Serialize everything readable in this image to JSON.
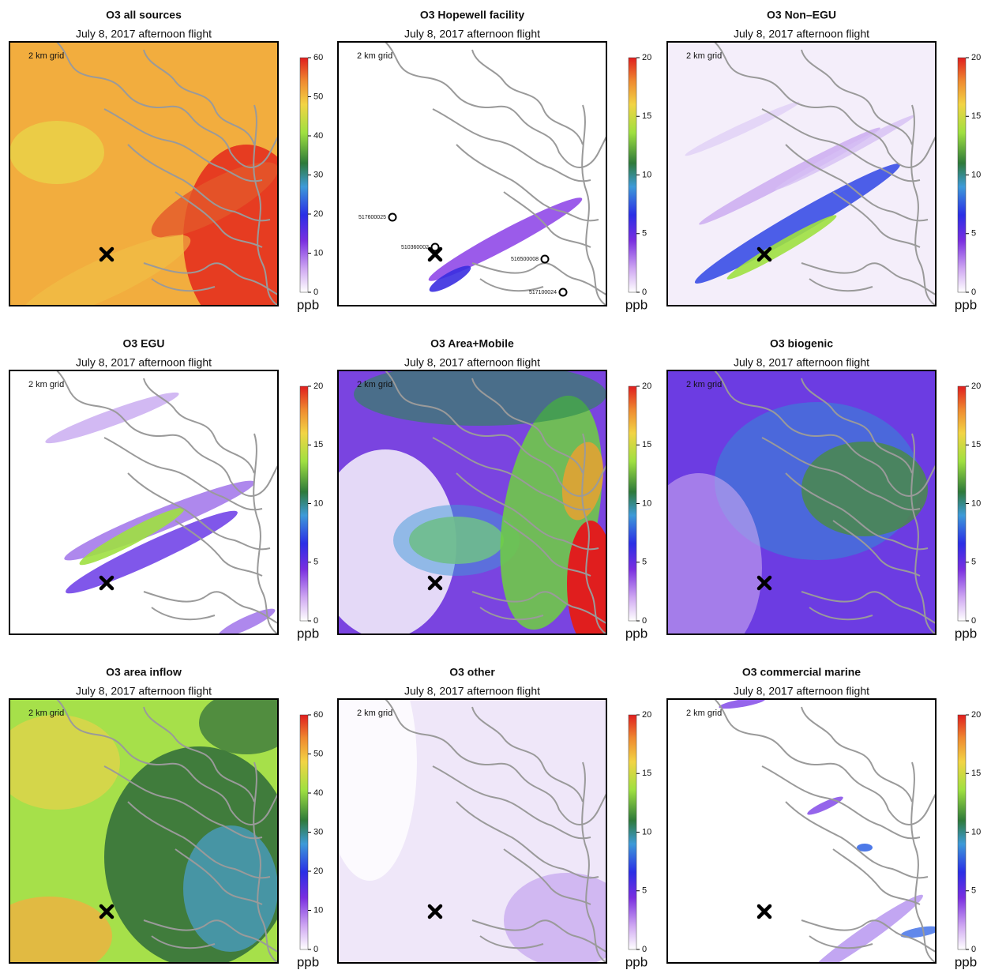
{
  "panels": [
    {
      "title": "O3 all sources",
      "subtitle": "July 8, 2017 afternoon flight",
      "grid_label": "2 km grid",
      "unit": "ppb",
      "colorbar": {
        "lim": [
          0,
          60
        ],
        "ticks": [
          0,
          10,
          20,
          30,
          40,
          50,
          60
        ]
      }
    },
    {
      "title": "O3 Hopewell facility",
      "subtitle": "July 8, 2017 afternoon flight",
      "grid_label": "2 km grid",
      "unit": "ppb",
      "colorbar": {
        "lim": [
          0,
          20
        ],
        "ticks": [
          0,
          5,
          10,
          15,
          20
        ]
      },
      "sites": [
        "517600025",
        "510360002",
        "516500008",
        "517100024"
      ]
    },
    {
      "title": "O3 Non–EGU",
      "subtitle": "July 8, 2017 afternoon flight",
      "grid_label": "2 km grid",
      "unit": "ppb",
      "colorbar": {
        "lim": [
          0,
          20
        ],
        "ticks": [
          0,
          5,
          10,
          15,
          20
        ]
      }
    },
    {
      "title": "O3 EGU",
      "subtitle": "July 8, 2017 afternoon flight",
      "grid_label": "2 km grid",
      "unit": "ppb",
      "colorbar": {
        "lim": [
          0,
          20
        ],
        "ticks": [
          0,
          5,
          10,
          15,
          20
        ]
      }
    },
    {
      "title": "O3 Area+Mobile",
      "subtitle": "July 8, 2017 afternoon flight",
      "grid_label": "2 km grid",
      "unit": "ppb",
      "colorbar": {
        "lim": [
          0,
          20
        ],
        "ticks": [
          0,
          5,
          10,
          15,
          20
        ]
      }
    },
    {
      "title": "O3 biogenic",
      "subtitle": "July 8, 2017 afternoon flight",
      "grid_label": "2 km grid",
      "unit": "ppb",
      "colorbar": {
        "lim": [
          0,
          20
        ],
        "ticks": [
          0,
          5,
          10,
          15,
          20
        ]
      }
    },
    {
      "title": "O3 area inflow",
      "subtitle": "July 8, 2017 afternoon flight",
      "grid_label": "2 km grid",
      "unit": "ppb",
      "colorbar": {
        "lim": [
          0,
          60
        ],
        "ticks": [
          0,
          10,
          20,
          30,
          40,
          50,
          60
        ]
      }
    },
    {
      "title": "O3 other",
      "subtitle": "July 8, 2017 afternoon flight",
      "grid_label": "2 km grid",
      "unit": "ppb",
      "colorbar": {
        "lim": [
          0,
          20
        ],
        "ticks": [
          0,
          5,
          10,
          15,
          20
        ]
      }
    },
    {
      "title": "O3 commercial marine",
      "subtitle": "July 8, 2017 afternoon flight",
      "grid_label": "2 km grid",
      "unit": "ppb",
      "colorbar": {
        "lim": [
          0,
          20
        ],
        "ticks": [
          0,
          5,
          10,
          15,
          20
        ]
      }
    }
  ]
}
